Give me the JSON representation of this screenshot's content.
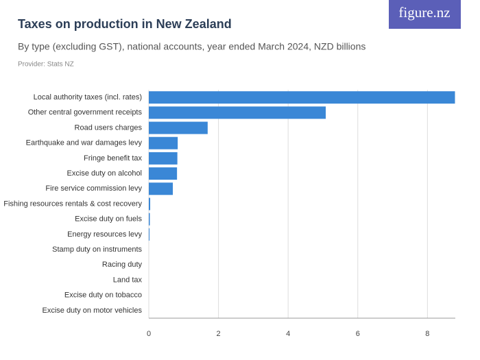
{
  "logo": "figure.nz",
  "chart_data": {
    "type": "hbar",
    "title": "Taxes on production in New Zealand",
    "subtitle": "By type (excluding GST), national accounts, year ended March 2024, NZD billions",
    "provider": "Provider: Stats NZ",
    "categories": [
      "Local authority taxes (incl. rates)",
      "Other central government receipts",
      "Road users charges",
      "Earthquake and war damages levy",
      "Fringe benefit tax",
      "Excise duty on alcohol",
      "Fire service commission levy",
      "Fishing resources rentals & cost recovery",
      "Excise duty on fuels",
      "Energy resources levy",
      "Stamp duty on instruments",
      "Racing duty",
      "Land tax",
      "Excise duty on tobacco",
      "Excise duty on motor vehicles"
    ],
    "values": [
      8.79,
      5.08,
      1.69,
      0.83,
      0.82,
      0.81,
      0.69,
      0.04,
      0.03,
      0.02,
      0,
      0,
      0,
      0,
      0
    ],
    "color": "#3a87d6",
    "xlim": [
      0,
      8.8
    ],
    "xticks": [
      0,
      2,
      4,
      6,
      8
    ],
    "grid": true
  }
}
